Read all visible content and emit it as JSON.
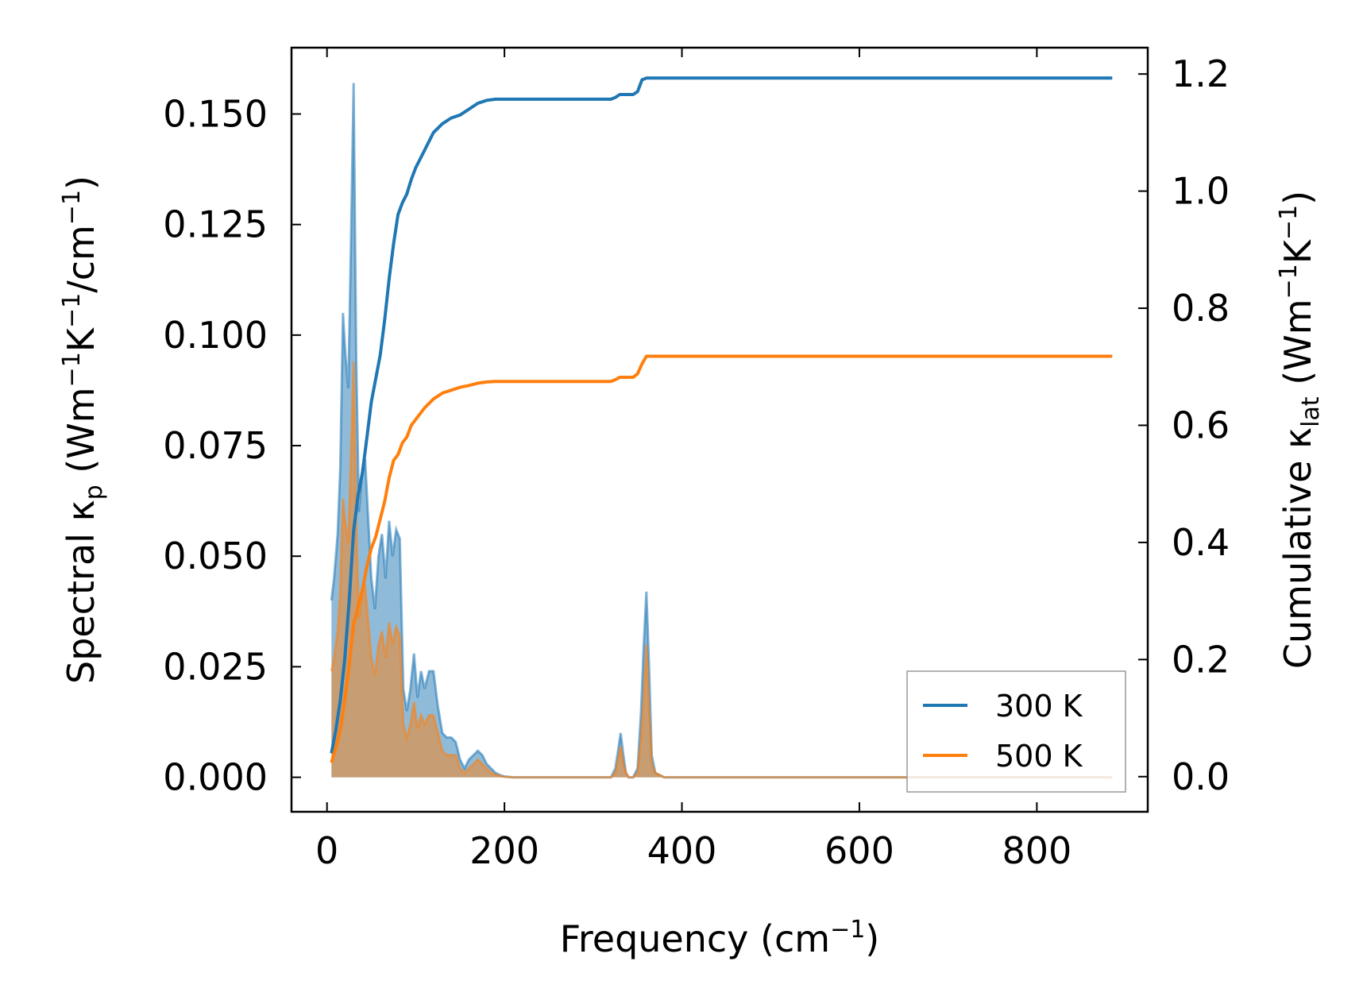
{
  "chart_data": {
    "type": "area+line",
    "title": "",
    "xlabel": {
      "main": "Frequency (cm",
      "sup": "−1",
      "end": ")"
    },
    "ylabel_left": {
      "t1": "Spectral κ",
      "sub": "p",
      "t2": " (Wm",
      "sup1": "−1",
      "t3": "K",
      "sup2": "−1",
      "t4": "/cm",
      "sup3": "−1",
      "t5": ")"
    },
    "ylabel_right": {
      "t1": "Cumulative κ",
      "sub": "lat",
      "t2": " (Wm",
      "sup1": "−1",
      "t3": "K",
      "sup2": "−1",
      "t4": ")"
    },
    "xlim": [
      -40,
      925
    ],
    "ylim_left": [
      -0.0078,
      0.165
    ],
    "ylim_right": [
      -0.06,
      1.245
    ],
    "x_ticks": [
      0,
      200,
      400,
      600,
      800
    ],
    "x_tick_labels": [
      "0",
      "200",
      "400",
      "600",
      "800"
    ],
    "y_left_ticks": [
      0.0,
      0.025,
      0.05,
      0.075,
      0.1,
      0.125,
      0.15
    ],
    "y_left_tick_labels": [
      "0.000",
      "0.025",
      "0.050",
      "0.075",
      "0.100",
      "0.125",
      "0.150"
    ],
    "y_right_ticks": [
      0.0,
      0.2,
      0.4,
      0.6,
      0.8,
      1.0,
      1.2
    ],
    "y_right_tick_labels": [
      "0.0",
      "0.2",
      "0.4",
      "0.6",
      "0.8",
      "1.0",
      "1.2"
    ],
    "legend": {
      "position": "lower-right",
      "entries": [
        "300 K",
        "500 K"
      ]
    },
    "series": [
      {
        "name": "300 K",
        "color": "#1f77b4",
        "spectral": {
          "x": [
            5,
            8,
            12,
            15,
            18,
            21,
            24,
            27,
            30,
            33,
            36,
            40,
            43,
            46,
            50,
            54,
            58,
            62,
            66,
            70,
            74,
            78,
            82,
            86,
            90,
            94,
            98,
            102,
            106,
            110,
            115,
            120,
            125,
            130,
            135,
            140,
            145,
            150,
            155,
            160,
            165,
            170,
            175,
            180,
            185,
            190,
            195,
            200,
            210,
            230,
            260,
            300,
            320,
            325,
            328,
            331,
            334,
            337,
            340,
            345,
            350,
            354,
            357,
            360,
            363,
            366,
            370,
            380,
            450,
            600,
            750,
            885
          ],
          "y": [
            0.04,
            0.045,
            0.055,
            0.07,
            0.105,
            0.095,
            0.088,
            0.12,
            0.157,
            0.095,
            0.06,
            0.07,
            0.072,
            0.06,
            0.045,
            0.038,
            0.05,
            0.055,
            0.045,
            0.058,
            0.05,
            0.056,
            0.054,
            0.02,
            0.015,
            0.02,
            0.028,
            0.018,
            0.024,
            0.02,
            0.024,
            0.024,
            0.016,
            0.01,
            0.009,
            0.009,
            0.008,
            0.004,
            0.002,
            0.004,
            0.005,
            0.006,
            0.005,
            0.003,
            0.002,
            0.001,
            0.0005,
            0.0002,
            0.0,
            0.0,
            0.0,
            0.0,
            0.0,
            0.002,
            0.006,
            0.01,
            0.005,
            0.001,
            0.0,
            0.0,
            0.002,
            0.015,
            0.03,
            0.042,
            0.025,
            0.005,
            0.001,
            0.0,
            0.0,
            0.0,
            0.0,
            0.0
          ]
        },
        "cumulative": {
          "x": [
            5,
            10,
            15,
            20,
            25,
            30,
            35,
            40,
            45,
            50,
            55,
            60,
            65,
            70,
            75,
            80,
            85,
            90,
            95,
            100,
            110,
            120,
            130,
            140,
            150,
            160,
            170,
            180,
            190,
            200,
            220,
            260,
            300,
            320,
            325,
            330,
            335,
            345,
            350,
            355,
            360,
            365,
            380,
            500,
            700,
            885
          ],
          "y": [
            0.04,
            0.08,
            0.13,
            0.2,
            0.3,
            0.42,
            0.48,
            0.52,
            0.58,
            0.64,
            0.68,
            0.72,
            0.78,
            0.85,
            0.91,
            0.96,
            0.98,
            0.995,
            1.02,
            1.04,
            1.07,
            1.1,
            1.115,
            1.125,
            1.13,
            1.14,
            1.15,
            1.155,
            1.157,
            1.157,
            1.157,
            1.157,
            1.157,
            1.157,
            1.16,
            1.165,
            1.165,
            1.165,
            1.17,
            1.19,
            1.193,
            1.193,
            1.193,
            1.193,
            1.193,
            1.193
          ]
        }
      },
      {
        "name": "500 K",
        "color": "#ff7f0e",
        "spectral": {
          "x": [
            5,
            8,
            12,
            15,
            18,
            21,
            24,
            27,
            30,
            33,
            36,
            40,
            43,
            46,
            50,
            54,
            58,
            62,
            66,
            70,
            74,
            78,
            82,
            86,
            90,
            94,
            98,
            102,
            106,
            110,
            115,
            120,
            125,
            130,
            135,
            140,
            145,
            150,
            155,
            160,
            165,
            170,
            175,
            180,
            185,
            190,
            195,
            200,
            210,
            230,
            260,
            300,
            320,
            325,
            328,
            331,
            334,
            337,
            340,
            345,
            350,
            354,
            357,
            360,
            363,
            366,
            370,
            380,
            450,
            600,
            750,
            885
          ],
          "y": [
            0.024,
            0.027,
            0.033,
            0.042,
            0.063,
            0.057,
            0.053,
            0.072,
            0.094,
            0.057,
            0.036,
            0.042,
            0.043,
            0.036,
            0.027,
            0.023,
            0.03,
            0.033,
            0.027,
            0.035,
            0.03,
            0.034,
            0.032,
            0.012,
            0.009,
            0.012,
            0.017,
            0.011,
            0.014,
            0.012,
            0.014,
            0.014,
            0.01,
            0.006,
            0.005,
            0.005,
            0.005,
            0.002,
            0.001,
            0.002,
            0.003,
            0.004,
            0.003,
            0.002,
            0.001,
            0.0006,
            0.0003,
            0.0001,
            0.0,
            0.0,
            0.0,
            0.0,
            0.0,
            0.001,
            0.004,
            0.007,
            0.003,
            0.001,
            0.0,
            0.0,
            0.001,
            0.009,
            0.018,
            0.03,
            0.015,
            0.003,
            0.001,
            0.0,
            0.0,
            0.0,
            0.0,
            0.0
          ]
        },
        "cumulative": {
          "x": [
            5,
            10,
            15,
            20,
            25,
            30,
            35,
            40,
            45,
            50,
            55,
            60,
            65,
            70,
            75,
            80,
            85,
            90,
            95,
            100,
            110,
            120,
            130,
            140,
            150,
            160,
            170,
            180,
            190,
            200,
            220,
            260,
            300,
            320,
            325,
            330,
            335,
            345,
            350,
            355,
            360,
            365,
            380,
            500,
            700,
            885
          ],
          "y": [
            0.024,
            0.05,
            0.08,
            0.13,
            0.19,
            0.26,
            0.29,
            0.32,
            0.36,
            0.39,
            0.41,
            0.44,
            0.47,
            0.51,
            0.54,
            0.55,
            0.57,
            0.58,
            0.6,
            0.61,
            0.63,
            0.645,
            0.655,
            0.66,
            0.665,
            0.668,
            0.672,
            0.674,
            0.675,
            0.675,
            0.675,
            0.675,
            0.675,
            0.675,
            0.678,
            0.682,
            0.682,
            0.682,
            0.688,
            0.705,
            0.718,
            0.718,
            0.718,
            0.718,
            0.718,
            0.718
          ]
        }
      }
    ]
  }
}
